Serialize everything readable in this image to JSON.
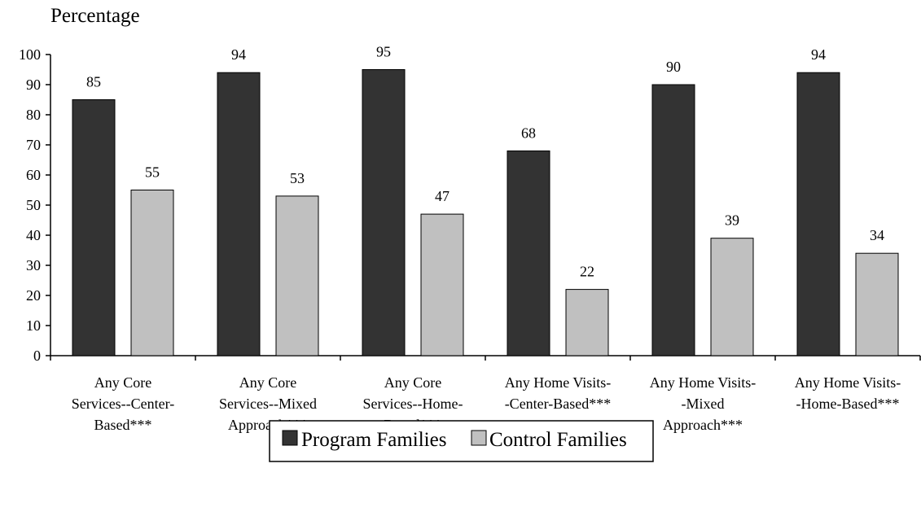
{
  "chart_data": {
    "type": "bar",
    "title": "Percentage",
    "xlabel": "",
    "ylabel": "Percentage",
    "ylim": [
      0,
      100
    ],
    "yticks": [
      "0",
      "10",
      "20",
      "30",
      "40",
      "50",
      "60",
      "70",
      "80",
      "90",
      "100"
    ],
    "grid": false,
    "legend_position": "bottom",
    "categories": [
      [
        "Any Core",
        "Services--Center-",
        "Based***"
      ],
      [
        "Any Core",
        "Services--Mixed",
        "Approach***"
      ],
      [
        "Any Core",
        "Services--Home-",
        "Based***"
      ],
      [
        "Any Home Visits-",
        "-Center-Based***"
      ],
      [
        "Any Home Visits-",
        "-Mixed",
        "Approach***"
      ],
      [
        "Any Home Visits-",
        "-Home-Based***"
      ]
    ],
    "series": [
      {
        "name": "Program Families",
        "color": "#333333",
        "values": [
          85,
          94,
          95,
          68,
          90,
          94
        ]
      },
      {
        "name": "Control Families",
        "color": "#c0c0c0",
        "values": [
          55,
          53,
          47,
          22,
          39,
          34
        ]
      }
    ]
  }
}
